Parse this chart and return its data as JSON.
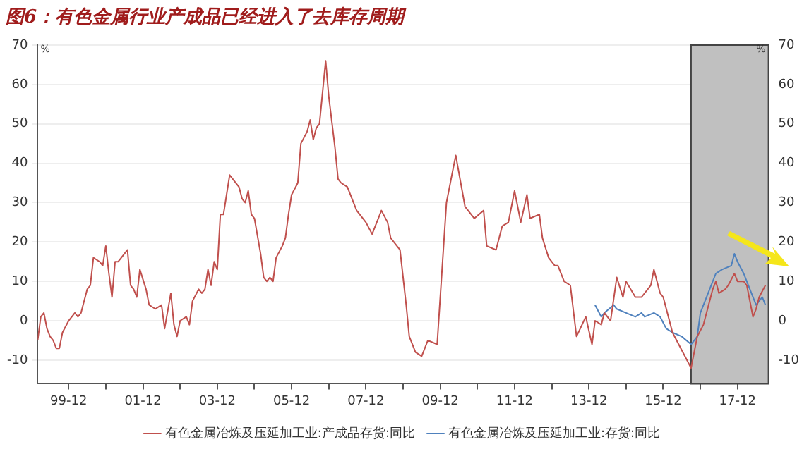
{
  "chart_data": {
    "type": "line",
    "title": "图6：有色金属行业产成品已经进入了去库存周期",
    "ylabel": "%",
    "y2label": "%",
    "series": [
      {
        "name": "有色金属冶炼及压延加工业:产成品存货:同比",
        "color": "#c0504d",
        "x": [
          "1999-02",
          "1999-03",
          "1999-04",
          "1999-05",
          "1999-06",
          "1999-07",
          "1999-08",
          "1999-09",
          "1999-10",
          "1999-12",
          "2000-02",
          "2000-03",
          "2000-04",
          "2000-06",
          "2000-07",
          "2000-08",
          "2000-10",
          "2000-11",
          "2000-12",
          "2001-01",
          "2001-02",
          "2001-03",
          "2001-04",
          "2001-05",
          "2001-07",
          "2001-08",
          "2001-09",
          "2001-10",
          "2001-11",
          "2002-01",
          "2002-02",
          "2002-04",
          "2002-06",
          "2002-07",
          "2002-09",
          "2002-10",
          "2002-11",
          "2002-12",
          "2003-02",
          "2003-03",
          "2003-04",
          "2003-06",
          "2003-07",
          "2003-08",
          "2003-09",
          "2003-10",
          "2003-11",
          "2003-12",
          "2004-01",
          "2004-02",
          "2004-03",
          "2004-04",
          "2004-06",
          "2004-07",
          "2004-08",
          "2004-09",
          "2004-10",
          "2004-11",
          "2004-12",
          "2005-02",
          "2005-03",
          "2005-04",
          "2005-05",
          "2005-06",
          "2005-07",
          "2005-09",
          "2005-10",
          "2005-11",
          "2005-12",
          "2006-02",
          "2006-03",
          "2006-05",
          "2006-06",
          "2006-07",
          "2006-08",
          "2006-09",
          "2006-11",
          "2006-12",
          "2007-02",
          "2007-03",
          "2007-04",
          "2007-06",
          "2007-09",
          "2007-12",
          "2008-02",
          "2008-04",
          "2008-05",
          "2008-07",
          "2008-08",
          "2008-10",
          "2008-11",
          "2009-01",
          "2009-02",
          "2009-04",
          "2009-06",
          "2009-08",
          "2009-11",
          "2010-02",
          "2010-05",
          "2010-08",
          "2010-11",
          "2011-02",
          "2011-03",
          "2011-06",
          "2011-08",
          "2011-10",
          "2011-12",
          "2012-02",
          "2012-04",
          "2012-05",
          "2012-08",
          "2012-09",
          "2012-11",
          "2013-01",
          "2013-02",
          "2013-04",
          "2013-06",
          "2013-08",
          "2013-11",
          "2014-01",
          "2014-02",
          "2014-04",
          "2014-05",
          "2014-07",
          "2014-09",
          "2014-11",
          "2014-12",
          "2015-03",
          "2015-05",
          "2015-07",
          "2015-08",
          "2015-09",
          "2015-11",
          "2015-12",
          "2016-02",
          "2016-03",
          "2016-05",
          "2016-07",
          "2016-09",
          "2016-11",
          "2017-01",
          "2017-04",
          "2017-05",
          "2017-06",
          "2017-08",
          "2017-09",
          "2017-11",
          "2017-12",
          "2018-02",
          "2018-03",
          "2018-05",
          "2018-06",
          "2018-07",
          "2018-09"
        ],
        "values": [
          -5,
          1,
          2,
          -2,
          -4,
          -5,
          -7,
          -7,
          -3,
          0,
          2,
          1,
          2,
          8,
          9,
          16,
          15,
          14,
          19,
          12,
          6,
          15,
          15,
          16,
          18,
          9,
          8,
          6,
          13,
          8,
          4,
          3,
          4,
          -2,
          7,
          -1,
          -4,
          0,
          1,
          -1,
          5,
          8,
          7,
          8,
          13,
          9,
          15,
          13,
          27,
          27,
          32,
          37,
          35,
          34,
          31,
          30,
          33,
          27,
          26,
          17,
          11,
          10,
          11,
          10,
          16,
          19,
          21,
          27,
          32,
          35,
          45,
          48,
          51,
          46,
          49,
          50,
          66,
          57,
          44,
          36,
          35,
          34,
          28,
          25,
          22,
          26,
          28,
          25,
          21,
          19,
          18,
          4,
          -4,
          -8,
          -9,
          -5,
          -6,
          30,
          42,
          29,
          26,
          28,
          19,
          18,
          24,
          25,
          33,
          25,
          32,
          26,
          27,
          21,
          16,
          14,
          14,
          10,
          9,
          -4,
          1,
          -6,
          0,
          -1,
          2,
          0,
          11,
          6,
          10,
          6,
          6,
          8,
          9,
          13,
          7,
          6,
          0,
          -3,
          -6,
          -9,
          -12,
          -4,
          -1,
          8,
          10,
          7,
          8,
          9,
          12,
          10,
          10,
          9,
          1,
          3,
          6,
          9
        ]
      },
      {
        "name": "有色金属冶炼及压延加工业:存货:同比",
        "color": "#4f81bd",
        "x": [
          "2014-02",
          "2014-04",
          "2014-05",
          "2014-08",
          "2014-09",
          "2014-12",
          "2015-03",
          "2015-05",
          "2015-06",
          "2015-09",
          "2015-11",
          "2016-01",
          "2016-03",
          "2016-06",
          "2016-09",
          "2016-11",
          "2016-12",
          "2017-03",
          "2017-05",
          "2017-07",
          "2017-10",
          "2017-11",
          "2017-12",
          "2018-02",
          "2018-04",
          "2018-06",
          "2018-08",
          "2018-09"
        ],
        "values": [
          4,
          1,
          2,
          4,
          3,
          2,
          1,
          2,
          1,
          2,
          1,
          -2,
          -3,
          -4,
          -6,
          -4,
          2,
          8,
          12,
          13,
          14,
          17,
          15,
          12,
          8,
          4,
          6,
          4
        ]
      }
    ],
    "xlim": [
      "1999-02",
      "2018-10"
    ],
    "xticks": [
      {
        "value": "1999-12",
        "label": "99-12"
      },
      {
        "value": "2000-12",
        "label": null
      },
      {
        "value": "2001-12",
        "label": "01-12"
      },
      {
        "value": "2002-12",
        "label": null
      },
      {
        "value": "2003-12",
        "label": "03-12"
      },
      {
        "value": "2004-12",
        "label": null
      },
      {
        "value": "2005-12",
        "label": "05-12"
      },
      {
        "value": "2006-12",
        "label": null
      },
      {
        "value": "2007-12",
        "label": "07-12"
      },
      {
        "value": "2008-12",
        "label": null
      },
      {
        "value": "2009-12",
        "label": "09-12"
      },
      {
        "value": "2010-12",
        "label": null
      },
      {
        "value": "2011-12",
        "label": "11-12"
      },
      {
        "value": "2012-12",
        "label": null
      },
      {
        "value": "2013-12",
        "label": "13-12"
      },
      {
        "value": "2014-12",
        "label": null
      },
      {
        "value": "2015-12",
        "label": "15-12"
      },
      {
        "value": "2016-12",
        "label": null
      },
      {
        "value": "2017-12",
        "label": "17-12"
      }
    ],
    "ylim": [
      -16,
      70
    ],
    "yticks": [
      -10,
      0,
      10,
      20,
      30,
      40,
      50,
      60,
      70
    ],
    "y2lim": [
      -16,
      70
    ],
    "y2ticks": [
      -10,
      0,
      10,
      20,
      30,
      40,
      50,
      60,
      70
    ],
    "bands": [
      {
        "axis": "x",
        "from": "2016-09",
        "to": "2018-10",
        "color": "#c0c0c0"
      }
    ],
    "grid": "y",
    "legend": "bottom",
    "marker": "none",
    "line_style": "solid"
  }
}
